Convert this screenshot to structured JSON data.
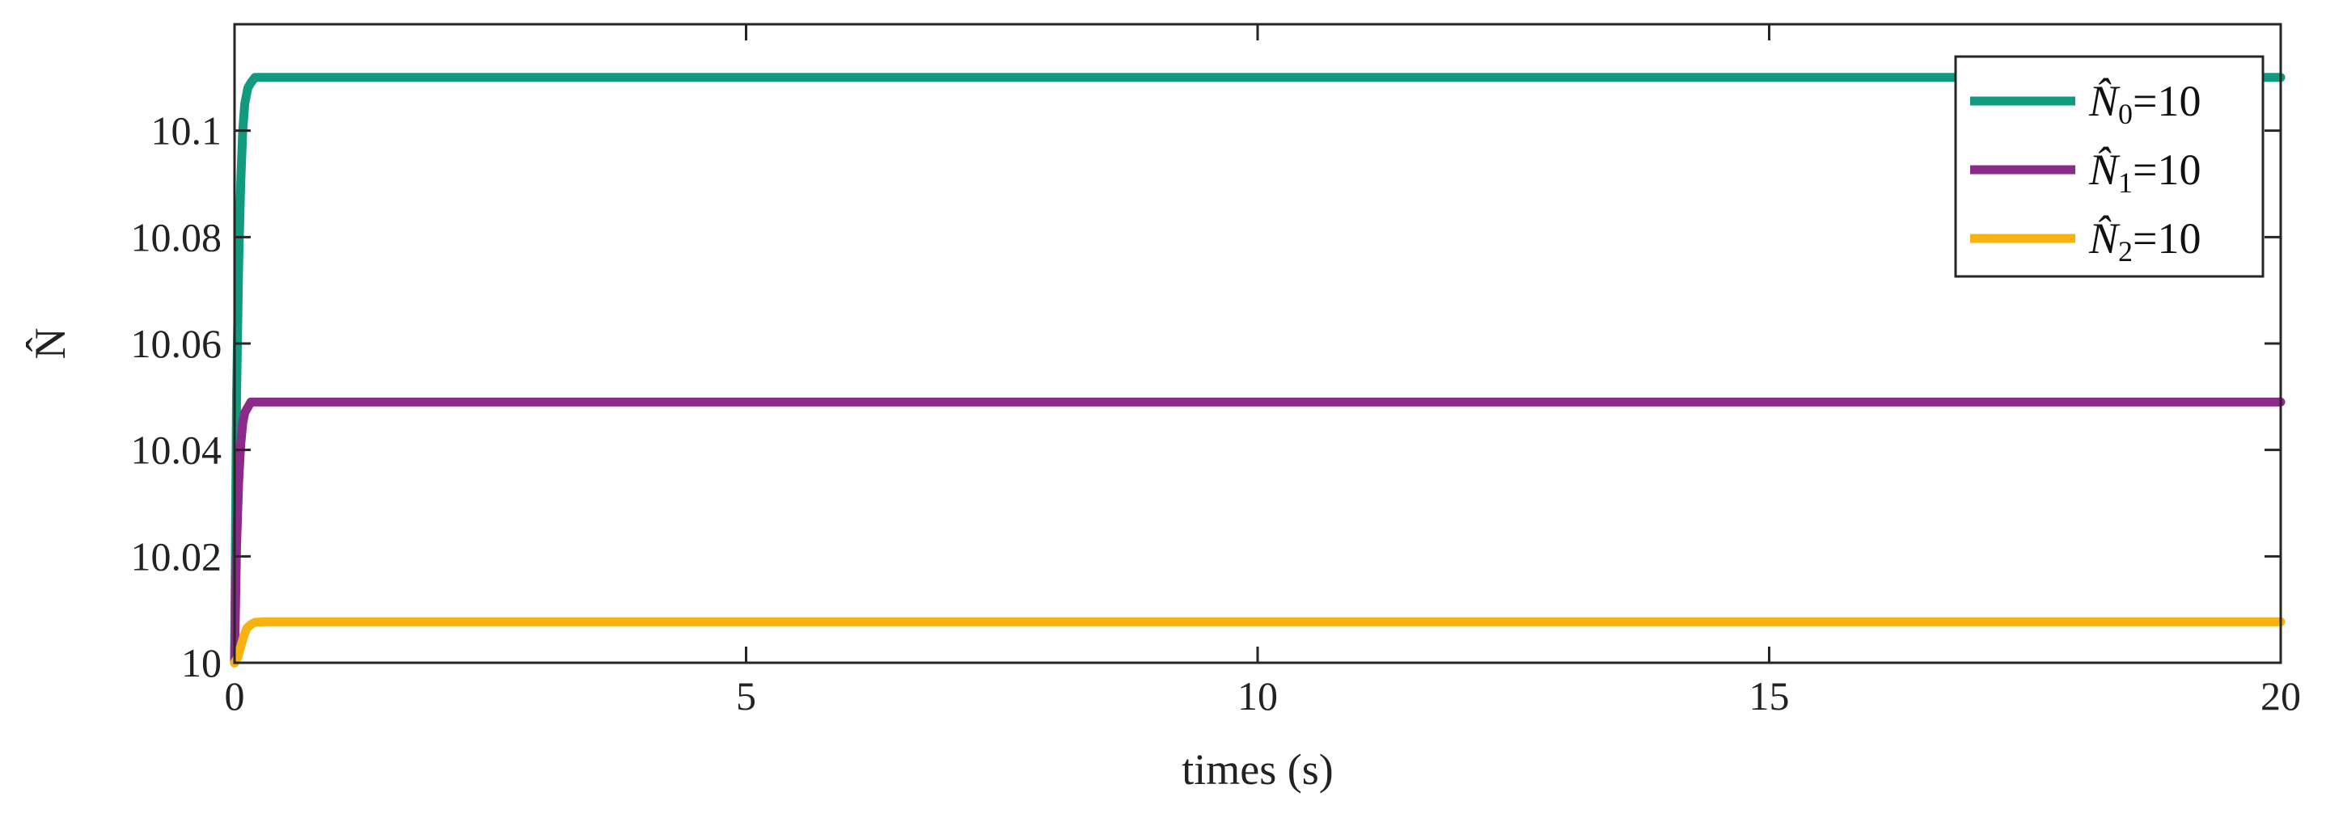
{
  "chart_data": {
    "type": "line",
    "xlabel": "times (s)",
    "ylabel": "N̂",
    "xlim": [
      0,
      20
    ],
    "ylim": [
      10,
      10.12
    ],
    "xticks": [
      0,
      5,
      10,
      15,
      20
    ],
    "xtick_labels": [
      "0",
      "5",
      "10",
      "15",
      "20"
    ],
    "yticks": [
      10,
      10.02,
      10.04,
      10.06,
      10.08,
      10.1
    ],
    "ytick_labels": [
      "10",
      "10.02",
      "10.04",
      "10.06",
      "10.08",
      "10.1"
    ],
    "grid": false,
    "legend_position": "top-right",
    "series": [
      {
        "name": "N̂0=10",
        "legend_base": "N̂",
        "legend_sub": "0",
        "legend_value": "=10",
        "color": "#129a7e",
        "x": [
          0,
          0.02,
          0.04,
          0.06,
          0.08,
          0.1,
          0.13,
          0.16,
          0.2,
          0.3,
          0.5,
          1,
          20
        ],
        "y": [
          10.0,
          10.05,
          10.075,
          10.09,
          10.1,
          10.105,
          10.108,
          10.109,
          10.11,
          10.11,
          10.11,
          10.11,
          10.11
        ]
      },
      {
        "name": "N̂1=10",
        "legend_base": "N̂",
        "legend_sub": "1",
        "legend_value": "=10",
        "color": "#8b2a8b",
        "x": [
          0,
          0.02,
          0.04,
          0.06,
          0.08,
          0.1,
          0.13,
          0.16,
          0.2,
          0.3,
          0.5,
          1,
          20
        ],
        "y": [
          10.0,
          10.022,
          10.034,
          10.041,
          10.045,
          10.047,
          10.048,
          10.049,
          10.049,
          10.049,
          10.049,
          10.049,
          10.049
        ]
      },
      {
        "name": "N̂2=10",
        "legend_base": "N̂",
        "legend_sub": "2",
        "legend_value": "=10",
        "color": "#f7b20f",
        "x": [
          0,
          0.03,
          0.06,
          0.09,
          0.12,
          0.16,
          0.2,
          0.3,
          0.5,
          1,
          20
        ],
        "y": [
          10.0,
          10.001,
          10.003,
          10.005,
          10.0065,
          10.0072,
          10.0076,
          10.0077,
          10.0077,
          10.0077,
          10.0077
        ]
      }
    ]
  }
}
